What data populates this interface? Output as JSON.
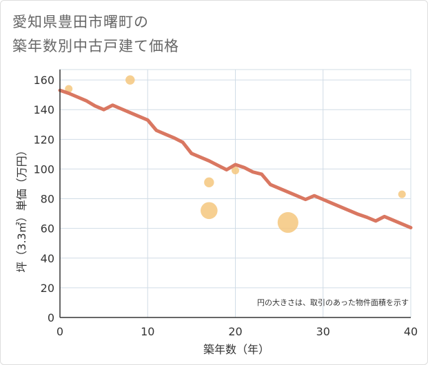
{
  "title_line1": "愛知県豊田市曙町の",
  "title_line2": "築年数別中古戸建て価格",
  "chart_data": {
    "type": "scatter+line",
    "title": "愛知県豊田市曙町の築年数別中古戸建て価格",
    "xlabel": "築年数（年）",
    "ylabel": "坪（3.3㎡）単価（万円）",
    "xlim": [
      0,
      40
    ],
    "ylim": [
      0,
      167
    ],
    "xticks": [
      0,
      10,
      20,
      30,
      40
    ],
    "yticks": [
      0,
      20,
      40,
      60,
      80,
      100,
      120,
      140,
      160
    ],
    "grid": true,
    "note": "円の大きさは、取引のあった物件面積を示す",
    "colors": {
      "line": "#d97761",
      "bubble": "#f5c77e",
      "grid": "#d0dce6",
      "axis": "#333333"
    },
    "trend": {
      "x": [
        0,
        1,
        2,
        3,
        4,
        5,
        6,
        7,
        8,
        9,
        10,
        11,
        12,
        13,
        14,
        15,
        16,
        17,
        18,
        19,
        20,
        21,
        22,
        23,
        24,
        25,
        26,
        27,
        28,
        29,
        30,
        31,
        32,
        33,
        34,
        35,
        36,
        37,
        38,
        39,
        40
      ],
      "y": [
        153,
        151,
        148.5,
        146,
        142.5,
        140,
        143,
        140.5,
        138,
        135.5,
        133,
        126,
        123.5,
        121,
        118,
        110.5,
        108,
        105.5,
        102.5,
        99.5,
        103,
        101,
        98,
        96.5,
        89.5,
        87,
        84.5,
        82,
        79.5,
        82,
        79.5,
        77,
        74.5,
        72,
        69.5,
        67.5,
        65,
        68,
        65.5,
        63,
        60.5
      ]
    },
    "bubbles": [
      {
        "x": 1,
        "y": 154,
        "size": 1
      },
      {
        "x": 8,
        "y": 160,
        "size": 1.5
      },
      {
        "x": 17,
        "y": 91,
        "size": 1.7
      },
      {
        "x": 17,
        "y": 72,
        "size": 5
      },
      {
        "x": 20,
        "y": 99,
        "size": 1
      },
      {
        "x": 26,
        "y": 64,
        "size": 7.5
      },
      {
        "x": 39,
        "y": 83,
        "size": 1
      }
    ]
  }
}
